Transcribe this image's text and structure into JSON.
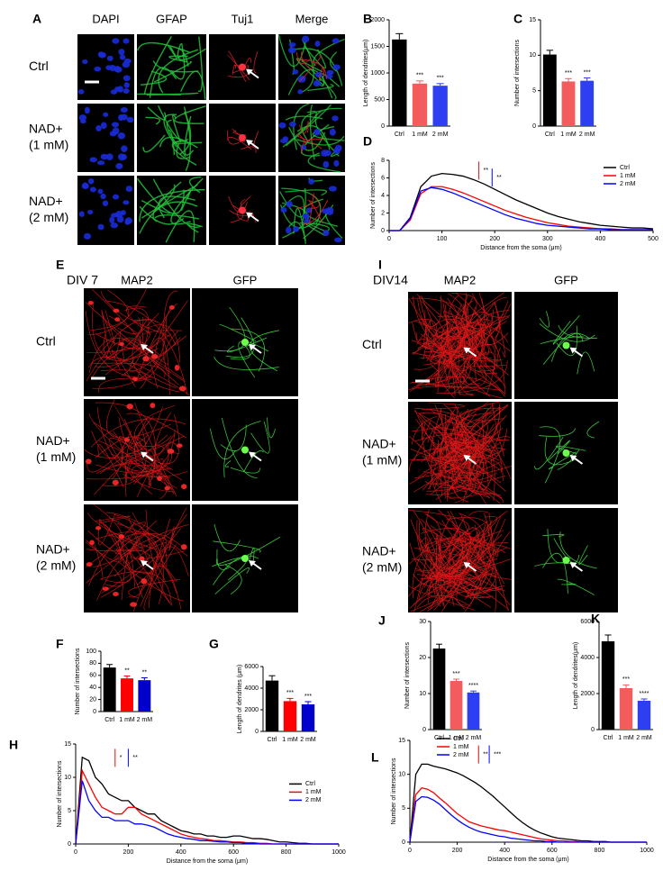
{
  "figure": {
    "A": {
      "letter": "A",
      "columns": [
        "DAPI",
        "GFAP",
        "Tuj1",
        "Merge"
      ],
      "rows": [
        [
          "Ctrl"
        ],
        [
          "NAD+",
          "(1 mM)"
        ],
        [
          "NAD+",
          "(2 mM)"
        ]
      ]
    },
    "E": {
      "letter": "E",
      "label": "DIV 7",
      "columns": [
        "MAP2",
        "GFP"
      ],
      "rows": [
        [
          "Ctrl"
        ],
        [
          "NAD+",
          "(1 mM)"
        ],
        [
          "NAD+",
          "(2 mM)"
        ]
      ]
    },
    "I": {
      "letter": "I",
      "label": "DIV14",
      "columns": [
        "MAP2",
        "GFP"
      ],
      "rows": [
        [
          "Ctrl"
        ],
        [
          "NAD+",
          "(1 mM)"
        ],
        [
          "NAD+",
          "(2 mM)"
        ]
      ]
    }
  },
  "chart_data": [
    {
      "type": "bar",
      "panel": "B",
      "ylabel": "Length of dendrites(μm)",
      "categories": [
        "Ctrl",
        "1 mM",
        "2 mM"
      ],
      "values": [
        1630,
        800,
        760
      ],
      "errors": [
        110,
        50,
        40
      ],
      "colors": [
        "#000000",
        "#f25c5c",
        "#2d3ff0"
      ],
      "significance": [
        null,
        "***",
        "***"
      ],
      "ylim": [
        0,
        2000
      ],
      "yticks": [
        0,
        500,
        1000,
        1500,
        2000
      ]
    },
    {
      "type": "bar",
      "panel": "C",
      "ylabel": "Number of intersections",
      "categories": [
        "Ctrl",
        "1 mM",
        "2 mM"
      ],
      "values": [
        10.1,
        6.3,
        6.4
      ],
      "errors": [
        0.6,
        0.4,
        0.4
      ],
      "colors": [
        "#000000",
        "#f25c5c",
        "#2d3ff0"
      ],
      "significance": [
        null,
        "***",
        "***"
      ],
      "ylim": [
        0,
        15
      ],
      "yticks": [
        0,
        5,
        10,
        15
      ]
    },
    {
      "type": "line",
      "panel": "D",
      "ylabel": "Number of intersections",
      "xlabel": "Distance from the soma (μm)",
      "legend": "upper right",
      "annotations": [
        "**",
        "**"
      ],
      "x": [
        0,
        20,
        40,
        60,
        80,
        100,
        120,
        140,
        160,
        180,
        200,
        220,
        240,
        260,
        280,
        300,
        320,
        340,
        360,
        380,
        400,
        420,
        440,
        460,
        480,
        500
      ],
      "series": [
        {
          "name": "Ctrl",
          "color": "#000000",
          "values": [
            0,
            0,
            1.5,
            5.0,
            6.2,
            6.5,
            6.4,
            6.2,
            5.8,
            5.3,
            4.7,
            4.1,
            3.5,
            3.0,
            2.5,
            2.0,
            1.6,
            1.3,
            1.0,
            0.8,
            0.6,
            0.5,
            0.4,
            0.3,
            0.3,
            0.2
          ]
        },
        {
          "name": "1 mM",
          "color": "#ff0000",
          "values": [
            0,
            0,
            1.2,
            4.2,
            5.0,
            5.0,
            4.7,
            4.3,
            3.8,
            3.3,
            2.8,
            2.3,
            1.9,
            1.5,
            1.2,
            0.9,
            0.7,
            0.5,
            0.4,
            0.3,
            0.2,
            0.2,
            0.1,
            0.1,
            0.1,
            0.1
          ]
        },
        {
          "name": "2 mM",
          "color": "#0000ff",
          "values": [
            0,
            0,
            1.4,
            4.5,
            4.9,
            4.7,
            4.3,
            3.8,
            3.3,
            2.8,
            2.3,
            1.8,
            1.4,
            1.1,
            0.8,
            0.6,
            0.5,
            0.4,
            0.3,
            0.2,
            0.2,
            0.1,
            0.1,
            0.1,
            0.1,
            0.1
          ]
        }
      ],
      "xlim": [
        0,
        500
      ],
      "xticks": [
        0,
        100,
        200,
        300,
        400,
        500
      ],
      "ylim": [
        0,
        8
      ],
      "yticks": [
        0,
        2,
        4,
        6,
        8
      ]
    },
    {
      "type": "bar",
      "panel": "F",
      "ylabel": "Number of intersections",
      "categories": [
        "Ctrl",
        "1 mM",
        "2 mM"
      ],
      "values": [
        73,
        55,
        52
      ],
      "errors": [
        5,
        4,
        4
      ],
      "colors": [
        "#000000",
        "#ff0000",
        "#0000cc"
      ],
      "significance": [
        null,
        "**",
        "**"
      ],
      "ylim": [
        0,
        100
      ],
      "yticks": [
        0,
        20,
        40,
        60,
        80,
        100
      ]
    },
    {
      "type": "bar",
      "panel": "G",
      "ylabel": "Length of dendrites (μm)",
      "categories": [
        "Ctrl",
        "1 mM",
        "2 mM"
      ],
      "values": [
        4700,
        2800,
        2500
      ],
      "errors": [
        450,
        250,
        250
      ],
      "colors": [
        "#000000",
        "#ff0000",
        "#0000cc"
      ],
      "significance": [
        null,
        "***",
        "***"
      ],
      "ylim": [
        0,
        6000
      ],
      "yticks": [
        0,
        2000,
        4000,
        6000
      ]
    },
    {
      "type": "line",
      "panel": "H",
      "ylabel": "Number of intersections",
      "xlabel": "Distance from the soma (μm)",
      "legend": "right",
      "annotations": [
        "*",
        "**"
      ],
      "x": [
        0,
        25,
        50,
        75,
        100,
        125,
        150,
        175,
        200,
        225,
        250,
        275,
        300,
        325,
        350,
        375,
        400,
        425,
        450,
        475,
        500,
        525,
        550,
        575,
        600,
        625,
        650,
        675,
        700,
        725,
        750,
        775,
        800,
        825,
        850,
        875,
        900,
        925,
        950,
        975,
        1000
      ],
      "series": [
        {
          "name": "Ctrl",
          "color": "#000000",
          "values": [
            0,
            13,
            12.5,
            10,
            9,
            7.5,
            7,
            6.5,
            6.5,
            5.5,
            5,
            4.5,
            4.5,
            3.5,
            3,
            2.5,
            2,
            1.8,
            1.5,
            1.5,
            1.2,
            1.2,
            1,
            1,
            1.2,
            1.2,
            1,
            0.8,
            0.8,
            0.7,
            0.5,
            0.3,
            0.3,
            0.2,
            0.1,
            0.1,
            0,
            0,
            0,
            0,
            0
          ]
        },
        {
          "name": "1 mM",
          "color": "#ff0000",
          "values": [
            0,
            11,
            9,
            7,
            5.5,
            5,
            4.5,
            4.5,
            5.5,
            5.5,
            4.5,
            4,
            3.5,
            3,
            2.5,
            2,
            1.5,
            1.2,
            1,
            0.8,
            0.7,
            0.5,
            0.5,
            0.4,
            0.3,
            0.3,
            0.2,
            0.2,
            0.1,
            0.1,
            0,
            0,
            0,
            0,
            0,
            0,
            0,
            0,
            0,
            0,
            0
          ]
        },
        {
          "name": "2 mM",
          "color": "#0000ff",
          "values": [
            0,
            9.5,
            6.5,
            5,
            4,
            4,
            3.5,
            3.5,
            3.5,
            3,
            3,
            2.8,
            2.5,
            2,
            1.5,
            1.2,
            1,
            0.8,
            0.7,
            0.5,
            0.5,
            0.4,
            0.3,
            0.3,
            0.2,
            0.2,
            0.1,
            0.1,
            0,
            0,
            0,
            0,
            0,
            0,
            0,
            0,
            0,
            0,
            0,
            0,
            0
          ]
        }
      ],
      "xlim": [
        0,
        1000
      ],
      "xticks": [
        0,
        200,
        400,
        600,
        800,
        1000
      ],
      "ylim": [
        0,
        15
      ],
      "yticks": [
        0,
        5,
        10,
        15
      ]
    },
    {
      "type": "bar",
      "panel": "J",
      "ylabel": "Number of intersections",
      "categories": [
        "Ctrl",
        "1 mM",
        "2 mM"
      ],
      "values": [
        22.5,
        13.5,
        10.3
      ],
      "errors": [
        1.2,
        0.5,
        0.4
      ],
      "colors": [
        "#000000",
        "#f25c5c",
        "#2d3ff0"
      ],
      "significance": [
        null,
        "***",
        "****"
      ],
      "ylim": [
        0,
        30
      ],
      "yticks": [
        0,
        10,
        20,
        30
      ]
    },
    {
      "type": "bar",
      "panel": "K",
      "ylabel": "Length of dendrites(μm)",
      "categories": [
        "Ctrl",
        "1 mM",
        "2 mM"
      ],
      "values": [
        4900,
        2300,
        1600
      ],
      "errors": [
        350,
        180,
        100
      ],
      "colors": [
        "#000000",
        "#f25c5c",
        "#2d3ff0"
      ],
      "significance": [
        null,
        "***",
        "****"
      ],
      "ylim": [
        0,
        6000
      ],
      "yticks": [
        0,
        2000,
        4000,
        6000
      ]
    },
    {
      "type": "line",
      "panel": "L",
      "ylabel": "Number of intersections",
      "xlabel": "Distance from the soma (μm)",
      "legend": "upper left",
      "annotations": [
        "**",
        "***"
      ],
      "x": [
        0,
        25,
        50,
        75,
        100,
        125,
        150,
        175,
        200,
        225,
        250,
        275,
        300,
        325,
        350,
        375,
        400,
        425,
        450,
        475,
        500,
        525,
        550,
        575,
        600,
        625,
        650,
        675,
        700,
        725,
        750,
        775,
        800,
        825,
        850,
        875,
        900,
        925,
        950,
        975,
        1000
      ],
      "series": [
        {
          "name": "Ctrl",
          "color": "#000000",
          "values": [
            0,
            10,
            11.5,
            11.5,
            11.2,
            11,
            10.8,
            10.5,
            10.2,
            9.8,
            9.3,
            8.8,
            8.2,
            7.5,
            6.8,
            6,
            5.2,
            4.4,
            3.6,
            2.9,
            2.3,
            1.8,
            1.4,
            1.1,
            0.8,
            0.6,
            0.5,
            0.4,
            0.3,
            0.2,
            0.2,
            0.1,
            0.1,
            0.1,
            0,
            0,
            0,
            0,
            0,
            0,
            0
          ]
        },
        {
          "name": "1 mM",
          "color": "#ff0000",
          "values": [
            0,
            7,
            8,
            7.8,
            7.3,
            6.5,
            5.8,
            5,
            4.2,
            3.6,
            3,
            2.7,
            2.4,
            2.2,
            2,
            1.8,
            1.7,
            1.5,
            1.3,
            1.1,
            0.9,
            0.7,
            0.5,
            0.4,
            0.3,
            0.2,
            0.2,
            0.1,
            0.1,
            0,
            0,
            0,
            0,
            0,
            0,
            0,
            0,
            0,
            0,
            0,
            0
          ]
        },
        {
          "name": "2 mM",
          "color": "#0000ff",
          "values": [
            0,
            6,
            6.7,
            6.6,
            6.2,
            5.6,
            4.8,
            4,
            3.3,
            2.7,
            2.2,
            1.8,
            1.5,
            1.3,
            1.1,
            0.9,
            0.8,
            0.6,
            0.5,
            0.4,
            0.3,
            0.2,
            0.2,
            0.1,
            0.1,
            0,
            0,
            0,
            0,
            0,
            0,
            0,
            0,
            0,
            0,
            0,
            0,
            0,
            0,
            0,
            0
          ]
        }
      ],
      "xlim": [
        0,
        1000
      ],
      "xticks": [
        0,
        200,
        400,
        600,
        800,
        1000
      ],
      "ylim": [
        0,
        15
      ],
      "yticks": [
        0,
        5,
        10,
        15
      ]
    }
  ]
}
